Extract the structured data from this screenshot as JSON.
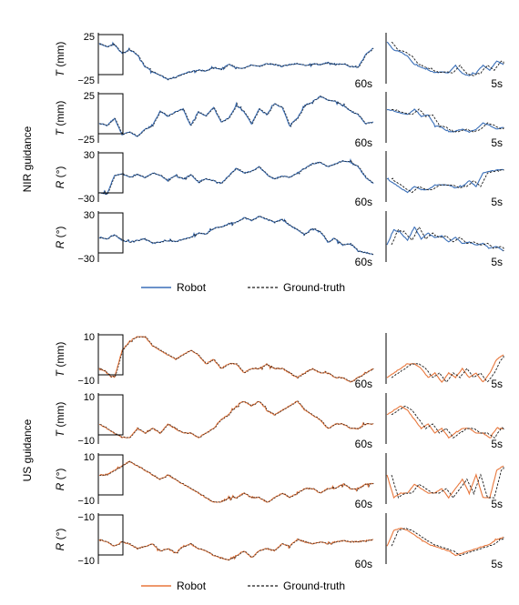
{
  "colors": {
    "nir": "#3a6fb8",
    "us": "#e8773c",
    "truth": "#1a1a1a",
    "axis": "#000000"
  },
  "legend": {
    "robot": "Robot",
    "truth": "Ground-truth"
  },
  "groups": [
    {
      "label": "NIR guidance",
      "color": "#3a6fb8"
    },
    {
      "label": "US guidance",
      "color": "#e8773c"
    }
  ],
  "chart_data": [
    {
      "type": "line",
      "group": "NIR guidance",
      "ylabel_var": "T",
      "ylabel_unit": "(mm)",
      "ytick_top": "25",
      "ytick_bottom": "−25",
      "ylim": [
        -25,
        25
      ],
      "duration_full": "60s",
      "duration_zoom": "5s",
      "series": [
        {
          "name": "Robot",
          "values": [
            17,
            14,
            16,
            6,
            10,
            5,
            -8,
            -14,
            -18,
            -22,
            -20,
            -16,
            -14,
            -12,
            -13,
            -9,
            -11,
            -6,
            -9,
            -10,
            -6,
            -8,
            -5,
            -6,
            -8,
            -6,
            -5,
            -7,
            -5,
            -6,
            -4,
            -6,
            -5,
            -8,
            -9,
            5,
            12
          ]
        }
      ],
      "zoom_values": [
        19,
        10,
        8,
        3,
        -6,
        -9,
        -12,
        -15,
        -14,
        -15,
        -7,
        -16,
        -18,
        -15,
        -7,
        -12,
        -2,
        -6
      ]
    },
    {
      "type": "line",
      "group": "NIR guidance",
      "ylabel_var": "T",
      "ylabel_unit": "(mm)",
      "ytick_top": "25",
      "ytick_bottom": "−25",
      "ylim": [
        -25,
        25
      ],
      "duration_full": "60s",
      "duration_zoom": "5s",
      "series": [
        {
          "name": "Robot",
          "values": [
            -5,
            -8,
            0,
            -18,
            -15,
            -20,
            -12,
            -8,
            8,
            2,
            7,
            10,
            -8,
            7,
            3,
            12,
            -4,
            0,
            14,
            7,
            -6,
            10,
            4,
            16,
            12,
            -8,
            0,
            14,
            18,
            24,
            20,
            19,
            14,
            8,
            4,
            -6,
            -4
          ]
        }
      ],
      "zoom_values": [
        10,
        8,
        6,
        4,
        10,
        2,
        4,
        -8,
        -10,
        -15,
        -14,
        -12,
        -15,
        -12,
        -5,
        -8,
        -12,
        -10
      ]
    },
    {
      "type": "line",
      "group": "NIR guidance",
      "ylabel_var": "R",
      "ylabel_unit": "(°)",
      "ytick_top": "30",
      "ytick_bottom": "−30",
      "ylim": [
        -30,
        30
      ],
      "duration_full": "60s",
      "duration_zoom": "5s",
      "series": [
        {
          "name": "Robot",
          "values": [
            -20,
            -22,
            2,
            5,
            0,
            4,
            0,
            6,
            3,
            -4,
            2,
            -2,
            4,
            -6,
            -2,
            -4,
            -8,
            2,
            12,
            6,
            8,
            14,
            4,
            -2,
            2,
            0,
            6,
            12,
            18,
            20,
            14,
            18,
            22,
            20,
            14,
            0,
            -8
          ]
        }
      ],
      "zoom_values": [
        -2,
        -8,
        -14,
        -20,
        -12,
        -16,
        -16,
        -10,
        -10,
        -10,
        -14,
        -12,
        -4,
        -12,
        6,
        8,
        10,
        10
      ]
    },
    {
      "type": "line",
      "group": "NIR guidance",
      "ylabel_var": "R",
      "ylabel_unit": "(°)",
      "ytick_top": "30",
      "ytick_bottom": "−30",
      "ylim": [
        -30,
        30
      ],
      "duration_full": "60s",
      "duration_zoom": "5s",
      "series": [
        {
          "name": "Robot",
          "values": [
            0,
            -2,
            4,
            -4,
            -6,
            -4,
            -2,
            -8,
            -6,
            -4,
            -6,
            -2,
            0,
            6,
            4,
            12,
            14,
            18,
            20,
            26,
            22,
            28,
            24,
            20,
            24,
            16,
            10,
            4,
            12,
            8,
            -6,
            -2,
            -10,
            -8,
            -18,
            -20,
            -22
          ]
        }
      ],
      "zoom_values": [
        -10,
        10,
        6,
        -4,
        14,
        -2,
        6,
        0,
        2,
        -6,
        0,
        -8,
        -6,
        -10,
        -8,
        -14,
        -12,
        -18
      ]
    },
    {
      "type": "line",
      "group": "US guidance",
      "ylabel_var": "T",
      "ylabel_unit": "(mm)",
      "ytick_top": "10",
      "ytick_bottom": "−10",
      "ylim": [
        -10,
        10
      ],
      "duration_full": "60s",
      "duration_zoom": "5s",
      "series": [
        {
          "name": "Robot",
          "values": [
            -4,
            -6,
            -8,
            4,
            8,
            10,
            10,
            6,
            4,
            2,
            0,
            2,
            4,
            2,
            -2,
            0,
            -4,
            -2,
            -2,
            -6,
            -4,
            -4,
            -2,
            -4,
            -4,
            -6,
            -8,
            -6,
            -4,
            -6,
            -6,
            -8,
            -8,
            -10,
            -8,
            -6,
            -4
          ]
        }
      ],
      "zoom_values": [
        -8,
        -6,
        -4,
        -2,
        -2,
        -4,
        -8,
        -6,
        -10,
        -6,
        -8,
        -4,
        -8,
        -6,
        -10,
        -6,
        0,
        2
      ]
    },
    {
      "type": "line",
      "group": "US guidance",
      "ylabel_var": "T",
      "ylabel_unit": "(mm)",
      "ytick_top": "10",
      "ytick_bottom": "−10",
      "ylim": [
        -10,
        10
      ],
      "duration_full": "60s",
      "duration_zoom": "5s",
      "series": [
        {
          "name": "Robot",
          "values": [
            -2,
            -4,
            -6,
            -8,
            -8,
            -4,
            -6,
            -4,
            -6,
            -2,
            -4,
            -6,
            -6,
            -8,
            -6,
            -4,
            0,
            2,
            6,
            8,
            6,
            8,
            4,
            2,
            4,
            6,
            8,
            4,
            2,
            0,
            -4,
            -2,
            -2,
            -4,
            -4,
            -2,
            -2
          ]
        }
      ],
      "zoom_values": [
        2,
        4,
        6,
        4,
        0,
        -4,
        -2,
        -6,
        -4,
        -8,
        -6,
        -4,
        -4,
        -6,
        -6,
        -8,
        -4,
        -4
      ]
    },
    {
      "type": "line",
      "group": "US guidance",
      "ylabel_var": "R",
      "ylabel_unit": "(°)",
      "ytick_top": "10",
      "ytick_bottom": "−10",
      "ylim": [
        -10,
        10
      ],
      "duration_full": "60s",
      "duration_zoom": "5s",
      "series": [
        {
          "name": "Robot",
          "values": [
            2,
            2,
            4,
            6,
            8,
            6,
            4,
            2,
            0,
            2,
            0,
            -2,
            -4,
            -6,
            -8,
            -10,
            -10,
            -8,
            -8,
            -6,
            -8,
            -8,
            -10,
            -8,
            -6,
            -8,
            -6,
            -4,
            -4,
            -6,
            -4,
            -4,
            -2,
            -4,
            -4,
            -2,
            -2
          ]
        }
      ],
      "zoom_values": [
        2,
        -8,
        -6,
        -6,
        -2,
        -4,
        -6,
        -6,
        -4,
        -8,
        -4,
        0,
        -6,
        2,
        -8,
        -8,
        4,
        6
      ]
    },
    {
      "type": "line",
      "group": "US guidance",
      "ylabel_var": "R",
      "ylabel_unit": "(°)",
      "ytick_top": "−10",
      "ytick_bottom": "−10",
      "ylim": [
        -12,
        -8
      ],
      "duration_full": "60s",
      "duration_zoom": "5s",
      "series": [
        {
          "name": "Robot",
          "values": [
            -10,
            -10.2,
            -10.6,
            -10.2,
            -10.4,
            -10.8,
            -10.6,
            -10.4,
            -11,
            -10.8,
            -11.2,
            -10.6,
            -10.4,
            -10.8,
            -11,
            -11.4,
            -11.6,
            -11.8,
            -11.4,
            -11,
            -11.6,
            -11,
            -10.8,
            -11,
            -10.4,
            -10.6,
            -10,
            -10.2,
            -10.4,
            -10.2,
            -10.4,
            -10.2,
            -10.1,
            -10.2,
            -10.2,
            -10.1,
            -10
          ]
        }
      ],
      "zoom_values": [
        -10.6,
        -9.2,
        -9,
        -9.2,
        -9.6,
        -10,
        -10.4,
        -10.6,
        -10.8,
        -11,
        -11.4,
        -11.2,
        -11,
        -10.8,
        -10.6,
        -10.4,
        -10,
        -9.8
      ]
    }
  ]
}
